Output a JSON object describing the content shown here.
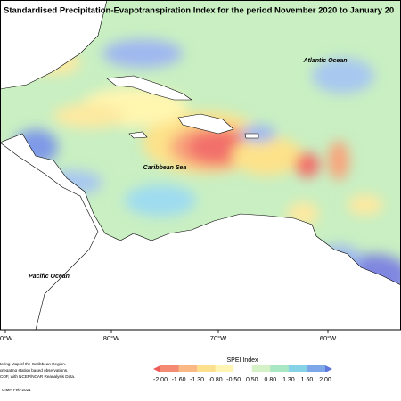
{
  "title": "Standardised Precipitation-Evapotranspiration Index for the period November 2020 to January 20",
  "labels": {
    "atlantic": "Atlantic Ocean",
    "caribbean": "Caribbean Sea",
    "pacific": "Pacific Ocean"
  },
  "longitudes": [
    "0°W",
    "80°W",
    "70°W",
    "60°W"
  ],
  "footnote": [
    "toring Map of the Caribbean Region.",
    "gregating station based observations,",
    "COF, with NCEP/NCAR Reanalysis Data."
  ],
  "credit": "CIMH Feb-2021",
  "legend": {
    "title": "SPEI Index",
    "labels": [
      "-2.00",
      "-1.60",
      "-1.30",
      "-0.80",
      "-0.50",
      "0.50",
      "0.80",
      "1.30",
      "1.60",
      "2.00"
    ],
    "colors": [
      "#ee5c5a",
      "#f58a72",
      "#f9b884",
      "#fde08e",
      "#fff6b6",
      "#ffffff",
      "#d4f2c6",
      "#a8e6c4",
      "#86d2e6",
      "#7ca8ea",
      "#5f78de"
    ]
  }
}
